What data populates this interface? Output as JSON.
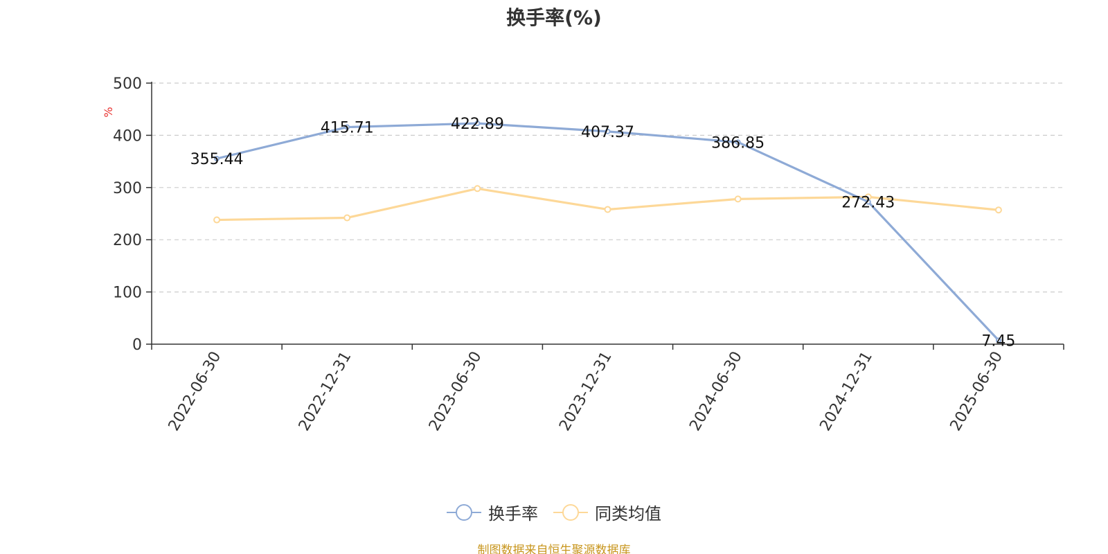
{
  "source_note": "制图数据来自恒生聚源数据库",
  "chart_data": {
    "type": "line",
    "title": "换手率(%)",
    "ylabel": "%",
    "ylim": [
      0,
      500
    ],
    "yticks": [
      "0",
      "100",
      "200",
      "300",
      "400",
      "500"
    ],
    "grid": true,
    "legend_position": "bottom-center",
    "categories": [
      "2022-06-30",
      "2022-12-31",
      "2023-06-30",
      "2023-12-31",
      "2024-06-30",
      "2024-12-31",
      "2025-06-30"
    ],
    "series": [
      {
        "name": "换手率",
        "color": "#8eaad6",
        "values": [
          355.44,
          415.71,
          422.89,
          407.37,
          386.85,
          272.43,
          7.45
        ],
        "labels": [
          "355.44",
          "415.71",
          "422.89",
          "407.37",
          "386.85",
          "272.43",
          "7.45"
        ]
      },
      {
        "name": "同类均值",
        "color": "#fdd898",
        "values": [
          238,
          242,
          298,
          258,
          278,
          282,
          257
        ]
      }
    ]
  }
}
